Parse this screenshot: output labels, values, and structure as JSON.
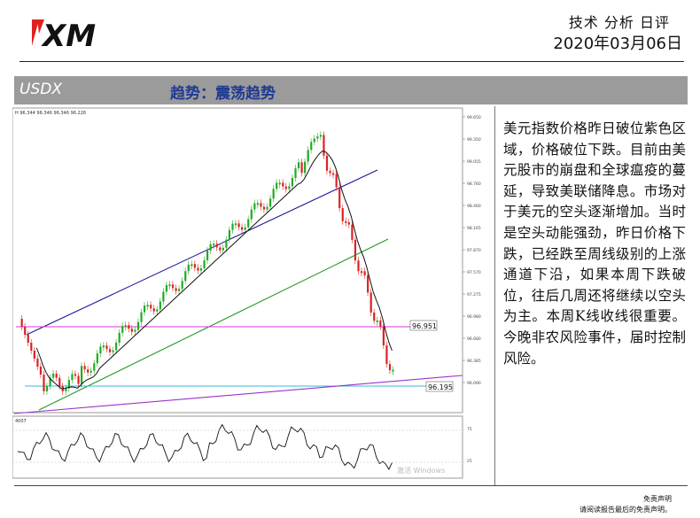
{
  "header": {
    "logo_text": "XM",
    "report_title": "技术 分析 日评",
    "date": "2020年03月06日"
  },
  "section": {
    "symbol": "USDX",
    "trend_label": "趋势：震荡趋势"
  },
  "chart_panel": {
    "top_info": "H 96.344 96.346 96.346 96.226",
    "price_axis_ticks": [
      "99.650",
      "99.350",
      "99.055",
      "98.760",
      "98.460",
      "98.165",
      "97.870",
      "97.570",
      "97.275",
      "96.980",
      "96.680",
      "96.385",
      "96.090"
    ],
    "level_label_upper": "96.951",
    "level_label_lower": "96.195",
    "sub_panel_ticks": [
      "75",
      "25"
    ],
    "sub_panel_top_label": "4007",
    "watermark": "激活 Windows",
    "colors": {
      "bull_candle": "#22aa22",
      "bear_candle": "#dd2222",
      "upper_channel": "#1a1a99",
      "lower_channel": "#229922",
      "support_line": "#dd33dd",
      "trend_line": "#9933cc",
      "cyan_line": "#33bbdd",
      "moving_average": "#111111"
    }
  },
  "commentary": {
    "text": "美元指数价格昨日破位紫色区域，价格破位下跌。目前由美元股市的崩盘和全球瘟疫的蔓延，导致美联储降息。市场对于美元的空头逐渐增加。当时是空头动能强劲，昨日价格下跌，已经跌至周线级别的上涨通道下沿，如果本周下跌破位，往后几周还将继续以空头为主。本周K线收线很重要。今晚非农风险事件，届时控制风险。"
  },
  "footer": {
    "disclaimer_title": "免责声明",
    "disclaimer_note": "请阅读报告最后的免责声明。"
  }
}
